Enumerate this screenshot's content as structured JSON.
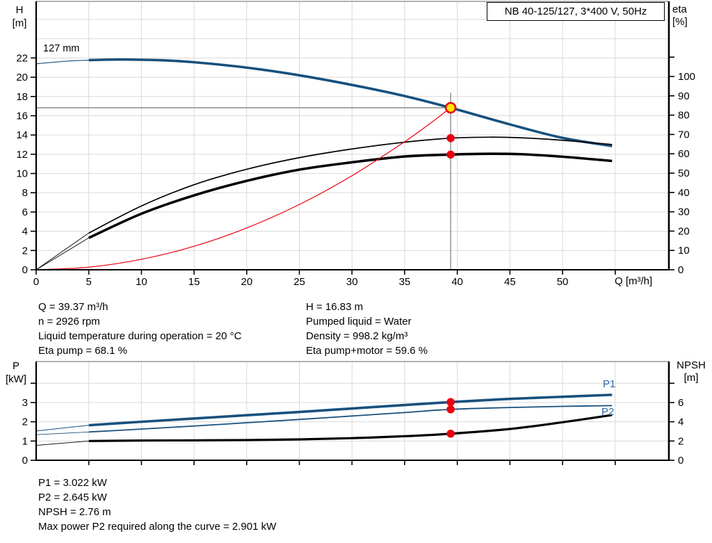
{
  "title_box": {
    "text": "NB 40-125/127, 3*400 V, 50Hz"
  },
  "axis_labels": {
    "h": [
      "H",
      "[m]"
    ],
    "eta": [
      "eta",
      "[%]"
    ],
    "q": "Q [m³/h]",
    "p": [
      "P",
      "[kW]"
    ],
    "npsh": [
      "NPSH",
      "[m]"
    ]
  },
  "annotations": {
    "impeller": "127 mm",
    "p1": "P1",
    "p2": "P2"
  },
  "info_top_left": [
    "Q = 39.37 m³/h",
    "n = 2926 rpm",
    "Liquid temperature during operation = 20 °C",
    "Eta pump = 68.1 %"
  ],
  "info_top_right": [
    "H = 16.83 m",
    "Pumped liquid = Water",
    "Density = 998.2 kg/m³",
    "Eta pump+motor = 59.6 %"
  ],
  "info_bottom": [
    "P1 = 3.022 kW",
    "P2 = 2.645 kW",
    "NPSH = 2.76 m",
    "Max power P2 required along the curve = 2.901 kW"
  ],
  "colors": {
    "blue": "#17507d",
    "label_blue": "#2b67a8",
    "red": "#e8000f",
    "yellow": "#ffe500",
    "black": "#000000",
    "grid": "#d9d9d9",
    "frame": "#999999",
    "ref": "#8c8c8c"
  },
  "chart_data": [
    {
      "type": "line",
      "name": "qh-eta-chart",
      "title": "NB 40-125/127, 3*400 V, 50Hz",
      "xlabel": "Q [m³/h]",
      "ylabel_left": "H [m]",
      "ylabel_right": "eta [%]",
      "area": {
        "l": 52,
        "r": 962,
        "t": 2,
        "b": 388
      },
      "x": {
        "min": 0,
        "max": 60.1
      },
      "y_left": {
        "min": 0,
        "max": 27.88
      },
      "y_right": {
        "min": 0,
        "max": 138.85
      },
      "grid_x": [
        5,
        10,
        15,
        20,
        25,
        30,
        35,
        40,
        45,
        50,
        55
      ],
      "grid_y": [
        2,
        4,
        6,
        8,
        10,
        12,
        14,
        16,
        18,
        20,
        22,
        24,
        26
      ],
      "ticks_x": [
        {
          "v": 0,
          "l": "0"
        },
        {
          "v": 5,
          "l": "5"
        },
        {
          "v": 10,
          "l": "10"
        },
        {
          "v": 15,
          "l": "15"
        },
        {
          "v": 20,
          "l": "20"
        },
        {
          "v": 25,
          "l": "25"
        },
        {
          "v": 30,
          "l": "30"
        },
        {
          "v": 35,
          "l": "35"
        },
        {
          "v": 40,
          "l": "40"
        },
        {
          "v": 45,
          "l": "45"
        },
        {
          "v": 50,
          "l": "50"
        },
        {
          "v": 55,
          "l": ""
        }
      ],
      "ticks_left": [
        {
          "v": 0,
          "l": "0"
        },
        {
          "v": 2,
          "l": "2"
        },
        {
          "v": 4,
          "l": "4"
        },
        {
          "v": 6,
          "l": "6"
        },
        {
          "v": 8,
          "l": "8"
        },
        {
          "v": 10,
          "l": "10"
        },
        {
          "v": 12,
          "l": "12"
        },
        {
          "v": 14,
          "l": "14"
        },
        {
          "v": 16,
          "l": "16"
        },
        {
          "v": 18,
          "l": "18"
        },
        {
          "v": 20,
          "l": "20"
        },
        {
          "v": 22,
          "l": "22"
        }
      ],
      "ticks_right": [
        {
          "v": 0,
          "l": "0"
        },
        {
          "v": 10,
          "l": "10"
        },
        {
          "v": 20,
          "l": "20"
        },
        {
          "v": 30,
          "l": "30"
        },
        {
          "v": 40,
          "l": "40"
        },
        {
          "v": 50,
          "l": "50"
        },
        {
          "v": 60,
          "l": "60"
        },
        {
          "v": 70,
          "l": "70"
        },
        {
          "v": 80,
          "l": "80"
        },
        {
          "v": 90,
          "l": "90"
        },
        {
          "v": 100,
          "l": "100"
        },
        {
          "v": 110,
          "l": ""
        }
      ],
      "ref_lines": [
        {
          "name": "duty-flow-line",
          "axis": "l",
          "x1": 39.37,
          "y1": 0,
          "x2": 39.37,
          "y2": 18.4
        },
        {
          "name": "duty-head-line",
          "axis": "l",
          "x1": 0,
          "y1": 16.83,
          "x2": 39.37,
          "y2": 16.83
        }
      ],
      "series": [
        {
          "id": "head-127mm",
          "label": "127 mm",
          "axis": "l",
          "color": "blue",
          "width": 3.6,
          "thin_width": 1.1,
          "thin_until": 5,
          "points": [
            [
              0,
              21.4
            ],
            [
              3,
              21.68
            ],
            [
              5,
              21.78
            ],
            [
              8,
              21.84
            ],
            [
              12,
              21.76
            ],
            [
              15,
              21.56
            ],
            [
              20,
              21.0
            ],
            [
              25,
              20.2
            ],
            [
              30,
              19.2
            ],
            [
              35,
              18.05
            ],
            [
              39.37,
              16.83
            ],
            [
              45,
              15.1
            ],
            [
              50,
              13.7
            ],
            [
              54.7,
              12.85
            ]
          ]
        },
        {
          "id": "eta-pump",
          "label": "Eta pump",
          "axis": "r",
          "color": "black",
          "width": 1.7,
          "thin_width": 0.9,
          "thin_until": 5,
          "points": [
            [
              0,
              0
            ],
            [
              5,
              19
            ],
            [
              10,
              33
            ],
            [
              15,
              44
            ],
            [
              20,
              52
            ],
            [
              25,
              58
            ],
            [
              30,
              62.5
            ],
            [
              35,
              66
            ],
            [
              39.37,
              68.1
            ],
            [
              43,
              68.6
            ],
            [
              46,
              68.3
            ],
            [
              50,
              67
            ],
            [
              54.7,
              64.8
            ]
          ]
        },
        {
          "id": "eta-pump-motor",
          "label": "Eta pump+motor",
          "axis": "r",
          "color": "black",
          "width": 3.6,
          "thin_width": 0.9,
          "thin_until": 5,
          "points": [
            [
              0,
              0
            ],
            [
              5,
              16.5
            ],
            [
              10,
              29
            ],
            [
              15,
              38.5
            ],
            [
              20,
              46
            ],
            [
              25,
              51.8
            ],
            [
              30,
              55.6
            ],
            [
              35,
              58.6
            ],
            [
              39.37,
              59.6
            ],
            [
              43,
              60.0
            ],
            [
              46,
              59.8
            ],
            [
              50,
              58.5
            ],
            [
              54.7,
              56.3
            ]
          ]
        },
        {
          "id": "system-curve",
          "label": "System curve",
          "axis": "l",
          "color": "red",
          "width": 1.2,
          "points": [
            [
              0,
              0
            ],
            [
              5,
              0.27
            ],
            [
              10,
              1.09
            ],
            [
              15,
              2.44
            ],
            [
              20,
              4.34
            ],
            [
              25,
              6.78
            ],
            [
              30,
              9.77
            ],
            [
              35,
              13.3
            ],
            [
              37.5,
              15.27
            ],
            [
              39.37,
              16.83
            ]
          ]
        }
      ],
      "markers": [
        {
          "name": "duty-point",
          "q": 39.37,
          "v": 16.83,
          "axis": "l",
          "r": 7,
          "fill": "yellow",
          "stroke": "red",
          "sw": 2.6
        },
        {
          "name": "eta-pump-point",
          "q": 39.37,
          "v": 68.1,
          "axis": "r",
          "r": 5.8,
          "fill": "red"
        },
        {
          "name": "eta-pump-motor-point",
          "q": 39.37,
          "v": 59.6,
          "axis": "r",
          "r": 5.8,
          "fill": "red"
        }
      ]
    },
    {
      "type": "line",
      "name": "power-npsh-chart",
      "xlabel": "Q [m³/h]",
      "ylabel_left": "P [kW]",
      "ylabel_right": "NPSH [m]",
      "area": {
        "l": 52,
        "r": 962,
        "t": 520,
        "b": 662
      },
      "x": {
        "min": 0,
        "max": 60.1
      },
      "y_left": {
        "min": 0,
        "max": 5.13
      },
      "y_right": {
        "min": 0,
        "max": 10.26
      },
      "grid_x": [
        5,
        10,
        15,
        20,
        25,
        30,
        35,
        40,
        45,
        50,
        55
      ],
      "grid_y": [
        1,
        2,
        3,
        4
      ],
      "ticks_x": [
        {
          "v": 5,
          "l": ""
        },
        {
          "v": 10,
          "l": ""
        },
        {
          "v": 15,
          "l": ""
        },
        {
          "v": 20,
          "l": ""
        },
        {
          "v": 25,
          "l": ""
        },
        {
          "v": 30,
          "l": ""
        },
        {
          "v": 35,
          "l": ""
        },
        {
          "v": 40,
          "l": ""
        },
        {
          "v": 45,
          "l": ""
        },
        {
          "v": 50,
          "l": ""
        },
        {
          "v": 55,
          "l": ""
        }
      ],
      "ticks_left": [
        {
          "v": 0,
          "l": "0"
        },
        {
          "v": 1,
          "l": "1"
        },
        {
          "v": 2,
          "l": "2"
        },
        {
          "v": 3,
          "l": "3"
        },
        {
          "v": 4,
          "l": ""
        }
      ],
      "ticks_right": [
        {
          "v": 0,
          "l": "0"
        },
        {
          "v": 2,
          "l": "2"
        },
        {
          "v": 4,
          "l": "4"
        },
        {
          "v": 6,
          "l": "6"
        },
        {
          "v": 8,
          "l": ""
        }
      ],
      "ref_lines": [],
      "series": [
        {
          "id": "p1",
          "label": "P1",
          "axis": "l",
          "color": "blue",
          "width": 3.6,
          "thin_width": 1.0,
          "thin_until": 5,
          "points": [
            [
              0,
              1.52
            ],
            [
              5,
              1.82
            ],
            [
              10,
              2.0
            ],
            [
              15,
              2.17
            ],
            [
              20,
              2.34
            ],
            [
              25,
              2.51
            ],
            [
              30,
              2.69
            ],
            [
              35,
              2.87
            ],
            [
              39.37,
              3.022
            ],
            [
              45,
              3.19
            ],
            [
              50,
              3.3
            ],
            [
              54.7,
              3.4
            ]
          ]
        },
        {
          "id": "p2",
          "label": "P2",
          "axis": "l",
          "color": "blue",
          "width": 1.8,
          "thin_width": 0.9,
          "thin_until": 5,
          "points": [
            [
              0,
              1.33
            ],
            [
              5,
              1.47
            ],
            [
              10,
              1.62
            ],
            [
              15,
              1.78
            ],
            [
              20,
              1.95
            ],
            [
              25,
              2.12
            ],
            [
              30,
              2.3
            ],
            [
              35,
              2.48
            ],
            [
              39.37,
              2.645
            ],
            [
              45,
              2.74
            ],
            [
              50,
              2.8
            ],
            [
              54.7,
              2.84
            ]
          ]
        },
        {
          "id": "npsh",
          "label": "NPSH",
          "axis": "r",
          "color": "black",
          "width": 3.2,
          "thin_width": 0.9,
          "thin_until": 5,
          "points": [
            [
              0,
              1.55
            ],
            [
              5,
              2.0
            ],
            [
              10,
              2.05
            ],
            [
              15,
              2.07
            ],
            [
              20,
              2.1
            ],
            [
              25,
              2.17
            ],
            [
              30,
              2.3
            ],
            [
              35,
              2.5
            ],
            [
              39.37,
              2.76
            ],
            [
              45,
              3.25
            ],
            [
              50,
              3.95
            ],
            [
              54.7,
              4.7
            ]
          ]
        }
      ],
      "markers": [
        {
          "name": "p1-point",
          "q": 39.37,
          "v": 3.022,
          "axis": "l",
          "r": 5.8,
          "fill": "red"
        },
        {
          "name": "p2-point",
          "q": 39.37,
          "v": 2.645,
          "axis": "l",
          "r": 5.8,
          "fill": "red"
        },
        {
          "name": "npsh-point",
          "q": 39.37,
          "v": 2.76,
          "axis": "r",
          "r": 5.8,
          "fill": "red"
        }
      ]
    }
  ]
}
